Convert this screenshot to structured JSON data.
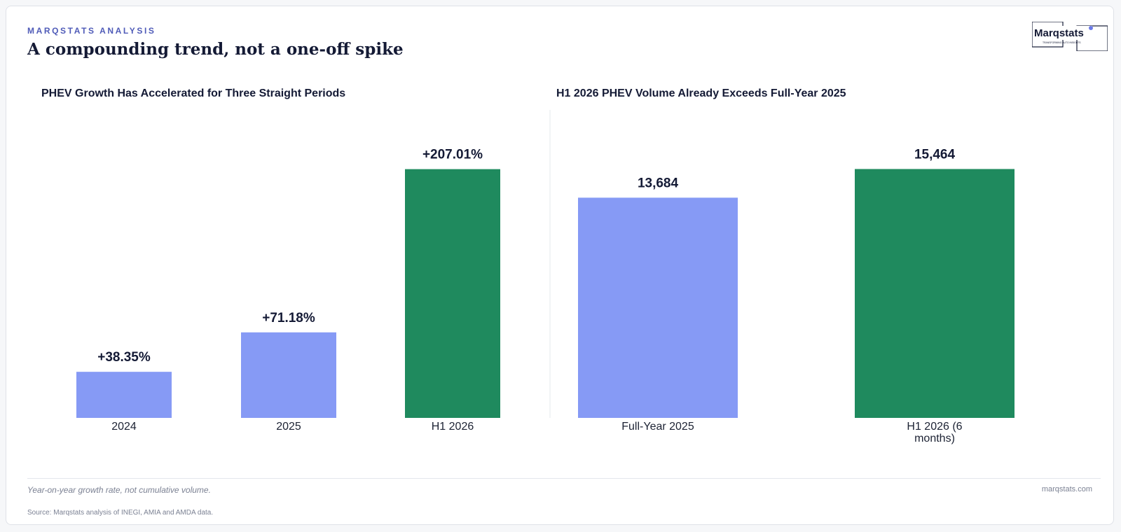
{
  "header": {
    "kicker": "MARQSTATS ANALYSIS",
    "title": "A compounding trend, not a one-off spike"
  },
  "logo": {
    "name": "Marqstats",
    "tagline": "TRANSFORMING AUTO INSIGHTS",
    "icon": "marqstats-logo-icon"
  },
  "colors": {
    "primary_bar": "#869af5",
    "highlight_bar": "#1f8a5e",
    "text": "#141a35"
  },
  "chart_data": [
    {
      "type": "bar",
      "title": "PHEV Growth Has Accelerated for Three Straight Periods",
      "categories": [
        "2024",
        "2025",
        "H1 2026"
      ],
      "values": [
        38.35,
        71.18,
        207.01
      ],
      "data_labels": [
        "+38.35%",
        "+71.18%",
        "+207.01%"
      ],
      "highlight_index": 2,
      "ylim": [
        0,
        240
      ],
      "grid": false,
      "xlabel": "",
      "ylabel": ""
    },
    {
      "type": "bar",
      "title": "H1 2026 PHEV Volume Already Exceeds Full-Year 2025",
      "categories": [
        "Full-Year 2025",
        "H1 2026 (6 months)"
      ],
      "values": [
        13684,
        15464
      ],
      "data_labels": [
        "13,684",
        "15,464"
      ],
      "highlight_index": 1,
      "ylim": [
        0,
        17920
      ],
      "grid": false,
      "xlabel": "",
      "ylabel": ""
    }
  ],
  "footer": {
    "note": "Year-on-year growth rate, not cumulative volume.",
    "site": "marqstats.com",
    "source": "Source: Marqstats analysis of INEGI, AMIA and AMDA data."
  }
}
